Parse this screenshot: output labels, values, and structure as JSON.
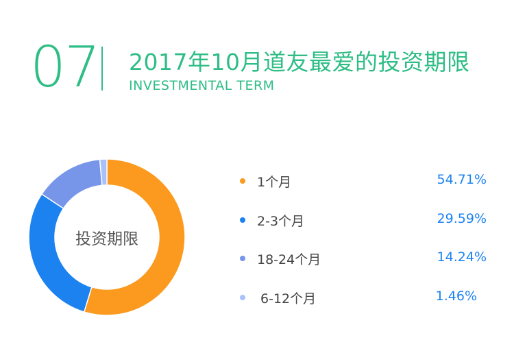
{
  "header": {
    "number": "07",
    "title_cn": "2017年10月道友最爱的投资期限",
    "title_en": "INVESTMENTAL TERM"
  },
  "colors": {
    "accent": "#2ebd85",
    "value_text": "#1b82f0"
  },
  "chart_data": {
    "type": "pie",
    "variant": "donut",
    "center_label": "投资期限",
    "slices": [
      {
        "label": "1个月",
        "value": 54.71,
        "value_label": "54.71%",
        "color": "#fb9a1f"
      },
      {
        "label": "2-3个月",
        "value": 29.59,
        "value_label": "29.59%",
        "color": "#1b82f0"
      },
      {
        "label": "18-24个月",
        "value": 14.24,
        "value_label": "14.24%",
        "color": "#7896e9"
      },
      {
        "label": "6-12个月",
        "value": 1.46,
        "value_label": "1.46%",
        "color": "#a9c1fb"
      }
    ]
  }
}
